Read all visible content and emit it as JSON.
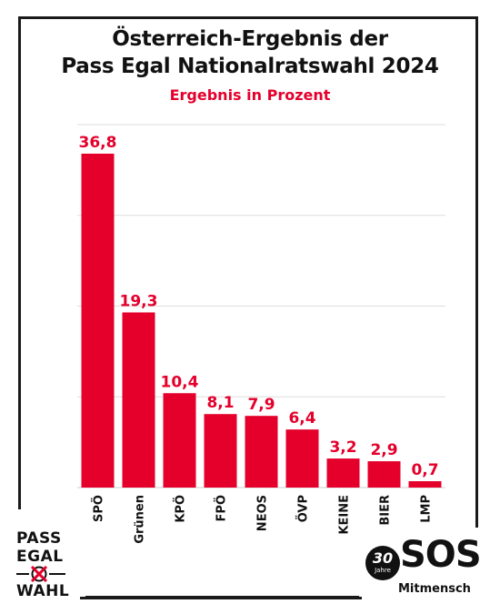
{
  "chart_data": {
    "type": "bar",
    "title_line1": "Österreich-Ergebnis der",
    "title_line2": "Pass Egal Nationalratswahl 2024",
    "subtitle": "Ergebnis in Prozent",
    "categories": [
      "SPÖ",
      "Grünen",
      "KPÖ",
      "FPÖ",
      "NEOS",
      "ÖVP",
      "KEINE",
      "BIER",
      "LMP"
    ],
    "values": [
      36.8,
      19.3,
      10.4,
      8.1,
      7.9,
      6.4,
      3.2,
      2.9,
      0.7
    ],
    "value_labels": [
      "36,8",
      "19,3",
      "10,4",
      "8,1",
      "7,9",
      "6,4",
      "3,2",
      "2,9",
      "0,7"
    ],
    "ylim": [
      0,
      40
    ],
    "grid": true,
    "bar_color": "#e4002b",
    "grid_color": "#dddddd"
  },
  "logos": {
    "left": {
      "line1": "PASS",
      "line2": "EGAL",
      "line3": "WAHL"
    },
    "right": {
      "badge_number": "30",
      "badge_word": "Jahre",
      "name": "SOS",
      "subname": "Mitmensch"
    }
  }
}
